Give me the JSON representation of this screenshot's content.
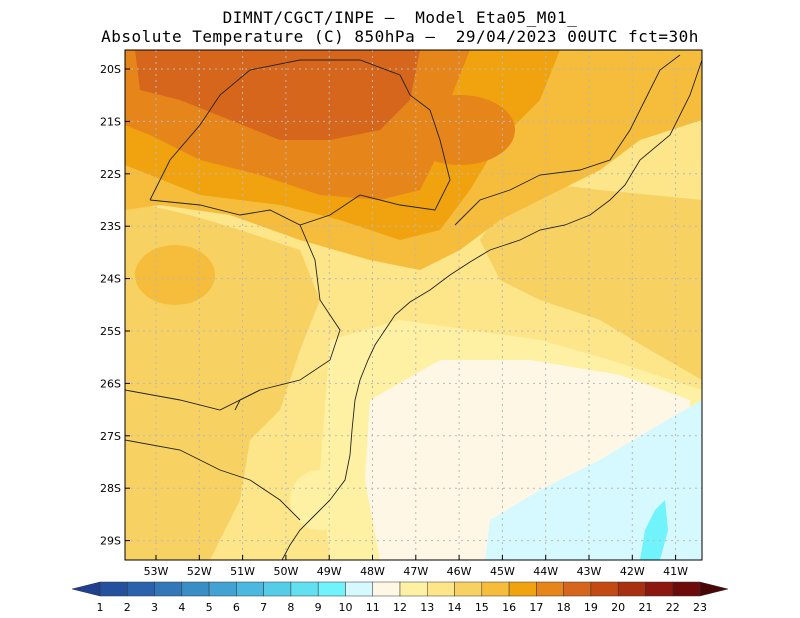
{
  "title_line1": "DIMNT/CGCT/INPE –  Model Eta05_M01_",
  "title_line2": "Absolute Temperature (C) 850hPa –  29/04/2023 00UTC fct=30h",
  "lat_labels": [
    "20S",
    "21S",
    "22S",
    "23S",
    "24S",
    "25S",
    "26S",
    "27S",
    "28S",
    "29S"
  ],
  "lon_labels": [
    "53W",
    "52W",
    "51W",
    "50W",
    "49W",
    "48W",
    "47W",
    "46W",
    "45W",
    "44W",
    "43W",
    "42W",
    "41W"
  ],
  "colorbar": {
    "labels": [
      "1",
      "2",
      "3",
      "4",
      "5",
      "6",
      "7",
      "8",
      "9",
      "10",
      "11",
      "12",
      "13",
      "14",
      "15",
      "16",
      "17",
      "18",
      "19",
      "20",
      "21",
      "22",
      "23"
    ],
    "colors": [
      "#1f3f8f",
      "#24519d",
      "#2a63ab",
      "#3278b8",
      "#3a8ec6",
      "#42a3d3",
      "#4bb9df",
      "#55cde9",
      "#61e0f1",
      "#70f3fb",
      "#d6f8ff",
      "#fff7e6",
      "#fff1a3",
      "#fde58a",
      "#f8d163",
      "#f5bd3b",
      "#f0a30f",
      "#e5851a",
      "#d6661c",
      "#c44a14",
      "#a83010",
      "#8b170e",
      "#6d0a0a",
      "#4a0606"
    ]
  },
  "field_colors": {
    "t12": "#fff7e6",
    "t11": "#d6f8ff",
    "t10": "#70f3fb",
    "t13": "#fff1a3",
    "t14": "#fde58a",
    "t15": "#f8d163",
    "t16": "#f5bd3b",
    "t17": "#f0a30f",
    "t18": "#e5851a",
    "t19": "#d6661c"
  }
}
